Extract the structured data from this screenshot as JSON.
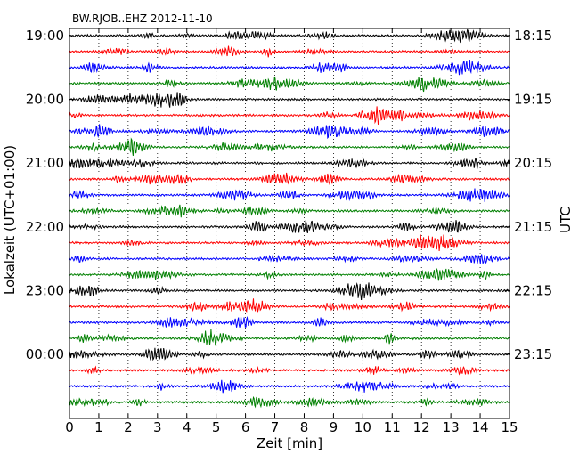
{
  "chart_data": {
    "type": "line",
    "title": "BW.RJOB..EHZ 2012-11-10",
    "xlabel": "Zeit  [min]",
    "ylabel_left": "Lokalzeit (UTC+01:00)",
    "ylabel_right": "UTC",
    "xlim": [
      0,
      15
    ],
    "x_ticks": [
      "0",
      "1",
      "2",
      "3",
      "4",
      "5",
      "6",
      "7",
      "8",
      "9",
      "10",
      "11",
      "12",
      "13",
      "14",
      "15"
    ],
    "y_ticks_left": [
      "19:00",
      "20:00",
      "21:00",
      "22:00",
      "23:00",
      "00:00"
    ],
    "y_ticks_right": [
      "18:15",
      "19:15",
      "20:15",
      "21:15",
      "22:15",
      "23:15"
    ],
    "grid_x": true,
    "traces_per_hour": 4,
    "trace_count": 24,
    "trace_colors": [
      "#000000",
      "#ff0000",
      "#0000ff",
      "#008000"
    ]
  }
}
